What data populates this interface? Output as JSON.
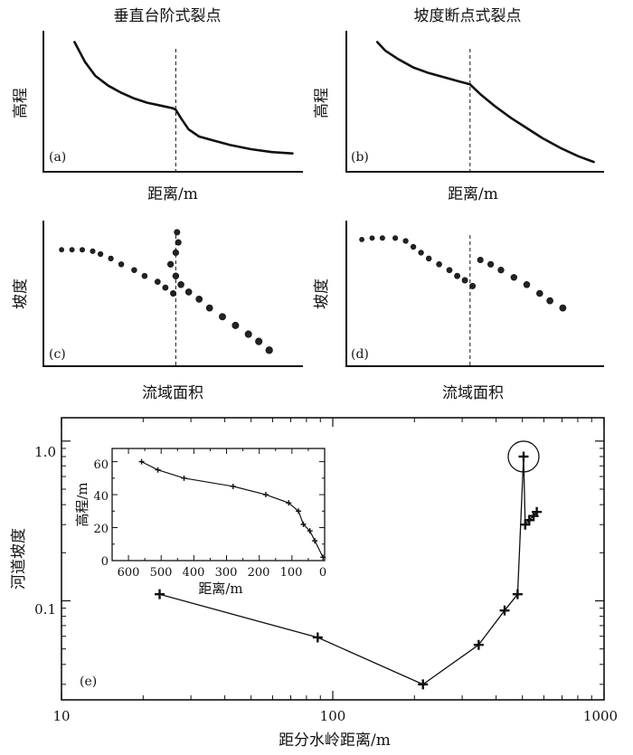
{
  "chart_data": [
    {
      "panel": "a",
      "type": "line",
      "title": "垂直台阶式裂点",
      "label": "(a)",
      "xlabel": "距离/m",
      "ylabel": "高程",
      "xlim": [
        0,
        100
      ],
      "ylim": [
        0,
        100
      ],
      "knickpoint_x": 51,
      "x": [
        12,
        16,
        20,
        25,
        30,
        35,
        40,
        45,
        50,
        51,
        53,
        56,
        60,
        66,
        72,
        80,
        88,
        96
      ],
      "y": [
        92,
        78,
        68,
        61,
        56,
        52,
        49,
        47,
        45,
        44,
        38,
        30,
        25,
        22,
        19,
        16,
        14,
        13
      ]
    },
    {
      "panel": "b",
      "type": "line",
      "title": "坡度断点式裂点",
      "label": "(b)",
      "xlabel": "距离/m",
      "ylabel": "高程",
      "xlim": [
        0,
        100
      ],
      "ylim": [
        0,
        100
      ],
      "knickpoint_x": 48,
      "x": [
        12,
        15,
        20,
        26,
        32,
        38,
        44,
        48,
        52,
        58,
        64,
        70,
        76,
        83,
        90,
        96
      ],
      "y": [
        92,
        86,
        80,
        74,
        70,
        67,
        64,
        62,
        55,
        46,
        38,
        31,
        24,
        17,
        11,
        7
      ]
    },
    {
      "panel": "c",
      "type": "scatter",
      "label": "(c)",
      "xlabel": "流域面积",
      "ylabel": "坡度",
      "xlim": [
        0,
        100
      ],
      "ylim": [
        0,
        100
      ],
      "knickpoint_x": 51,
      "x": [
        7,
        11,
        15,
        19,
        22,
        26,
        30,
        35,
        39,
        44,
        47,
        50,
        51.5,
        52,
        51,
        49,
        51,
        53,
        56,
        60,
        64,
        69,
        74,
        79,
        83,
        87
      ],
      "y": [
        80,
        80,
        80,
        79,
        77,
        74,
        70,
        66,
        62,
        58,
        54,
        50,
        92,
        85,
        78,
        70,
        62,
        56,
        51,
        46,
        40,
        34,
        28,
        22,
        17,
        11
      ]
    },
    {
      "panel": "d",
      "type": "scatter",
      "label": "(d)",
      "xlabel": "流域面积",
      "ylabel": "坡度",
      "xlim": [
        0,
        100
      ],
      "ylim": [
        0,
        100
      ],
      "knickpoint_x": 48,
      "x": [
        6,
        10,
        14,
        19,
        23,
        26,
        29,
        32,
        36,
        40,
        43,
        46,
        49,
        52,
        56,
        60,
        65,
        70,
        75,
        79,
        84
      ],
      "y": [
        87,
        88,
        88,
        88,
        86,
        82,
        78,
        74,
        70,
        66,
        62,
        59,
        55,
        73,
        70,
        66,
        61,
        56,
        50,
        45,
        40
      ]
    },
    {
      "panel": "e",
      "type": "line",
      "label": "(e)",
      "xlabel": "距分水岭距离/m",
      "ylabel": "河道坡度",
      "xscale": "log",
      "yscale": "log",
      "xlim": [
        10,
        1000
      ],
      "ylim": [
        0.024,
        1.4
      ],
      "xticks": [
        "10",
        "100",
        "1000"
      ],
      "yticks": [
        "0.1",
        "1.0"
      ],
      "x": [
        23,
        88,
        215,
        345,
        430,
        480,
        505,
        512,
        530,
        550,
        565
      ],
      "y": [
        0.11,
        0.059,
        0.03,
        0.053,
        0.087,
        0.11,
        0.8,
        0.3,
        0.32,
        0.34,
        0.36
      ],
      "highlight_point": {
        "x": 505,
        "y": 0.8
      },
      "inset": {
        "type": "line",
        "xlabel": "距离/m",
        "ylabel": "高程/m",
        "xlim": [
          650,
          0
        ],
        "ylim": [
          0,
          68
        ],
        "xticks": [
          "600",
          "500",
          "400",
          "300",
          "200",
          "100",
          "0"
        ],
        "yticks": [
          "0",
          "20",
          "40",
          "60"
        ],
        "x": [
          560,
          510,
          430,
          280,
          180,
          110,
          80,
          65,
          45,
          30,
          5
        ],
        "y": [
          60,
          55,
          50,
          45,
          40,
          35,
          30,
          22,
          18,
          12,
          2
        ]
      }
    }
  ]
}
